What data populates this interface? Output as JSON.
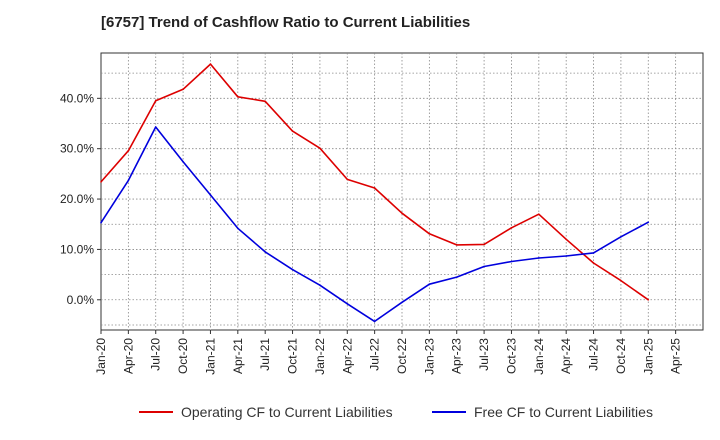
{
  "chart_data": {
    "type": "line",
    "title": "[6757]  Trend of Cashflow Ratio to Current Liabilities",
    "xlabel": "",
    "ylabel": "",
    "x": [
      "Jan-20",
      "Apr-20",
      "Jul-20",
      "Oct-20",
      "Jan-21",
      "Apr-21",
      "Jul-21",
      "Oct-21",
      "Jan-22",
      "Apr-22",
      "Jul-22",
      "Oct-22",
      "Jan-23",
      "Apr-23",
      "Jul-23",
      "Oct-23",
      "Jan-24",
      "Apr-24",
      "Jul-24",
      "Oct-24",
      "Jan-25"
    ],
    "x_ticks": [
      "Jan-20",
      "Apr-20",
      "Jul-20",
      "Oct-20",
      "Jan-21",
      "Apr-21",
      "Jul-21",
      "Oct-21",
      "Jan-22",
      "Apr-22",
      "Jul-22",
      "Oct-22",
      "Jan-23",
      "Apr-23",
      "Jul-23",
      "Oct-23",
      "Jan-24",
      "Apr-24",
      "Jul-24",
      "Oct-24",
      "Jan-25",
      "Apr-25"
    ],
    "ylim": [
      -6,
      49
    ],
    "y_ticks": [
      0,
      10,
      20,
      30,
      40
    ],
    "y_tick_labels": [
      "0.0%",
      "10.0%",
      "20.0%",
      "30.0%",
      "40.0%"
    ],
    "grid": true,
    "legend_position": "bottom",
    "series": [
      {
        "name": "Operating CF to Current Liabilities",
        "color": "#dd0000",
        "values": [
          23.4,
          29.6,
          39.5,
          41.8,
          46.8,
          40.3,
          39.4,
          33.5,
          30.1,
          23.9,
          22.2,
          17.2,
          13.1,
          10.9,
          11.0,
          14.3,
          17.0,
          12.0,
          7.3,
          3.8,
          0.0
        ]
      },
      {
        "name": "Free CF to Current Liabilities",
        "color": "#0000dd",
        "values": [
          15.3,
          23.7,
          34.3,
          27.4,
          20.8,
          14.2,
          9.5,
          6.0,
          2.9,
          -0.8,
          -4.3,
          -0.5,
          3.1,
          4.5,
          6.6,
          7.6,
          8.3,
          8.7,
          9.3,
          12.5,
          15.4
        ]
      }
    ]
  }
}
